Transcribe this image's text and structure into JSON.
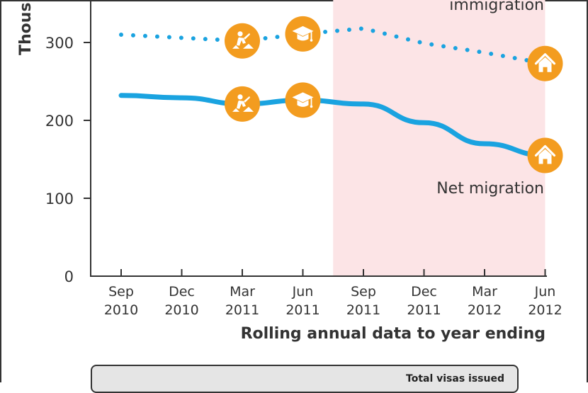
{
  "chart_data": {
    "type": "line",
    "ylabel": "Thous",
    "xlabel": "Rolling annual data to year ending",
    "ylim": [
      0,
      350
    ],
    "yticks": [
      0,
      100,
      200,
      300
    ],
    "categories": [
      {
        "month": "Sep",
        "year": "2010"
      },
      {
        "month": "Dec",
        "year": "2010"
      },
      {
        "month": "Mar",
        "year": "2011"
      },
      {
        "month": "Jun",
        "year": "2011"
      },
      {
        "month": "Sep",
        "year": "2011"
      },
      {
        "month": "Dec",
        "year": "2011"
      },
      {
        "month": "Mar",
        "year": "2012"
      },
      {
        "month": "Jun",
        "year": "2012"
      }
    ],
    "shaded_region": {
      "from_index": 3.5,
      "to_index": 7,
      "color": "#fce4e6"
    },
    "series": [
      {
        "name": "immigration",
        "style": "dotted",
        "color": "#1aa3e0",
        "values": [
          310,
          306,
          302,
          311,
          318,
          299,
          287,
          273
        ],
        "markers": [
          {
            "index": 2,
            "value": 302,
            "icon": "construction-worker-icon"
          },
          {
            "index": 3,
            "value": 311,
            "icon": "graduation-cap-icon"
          },
          {
            "index": 7,
            "value": 273,
            "icon": "house-icon"
          }
        ]
      },
      {
        "name": "Net migration",
        "style": "solid",
        "color": "#1aa3e0",
        "values": [
          232,
          229,
          221,
          226,
          221,
          197,
          170,
          155
        ],
        "markers": [
          {
            "index": 2,
            "value": 221,
            "icon": "construction-worker-icon"
          },
          {
            "index": 3,
            "value": 226,
            "icon": "graduation-cap-icon"
          },
          {
            "index": 7,
            "value": 155,
            "icon": "house-icon"
          }
        ]
      }
    ],
    "marker_color": "#f39c1f"
  },
  "bottom_box": {
    "label": "Total visas issued"
  }
}
